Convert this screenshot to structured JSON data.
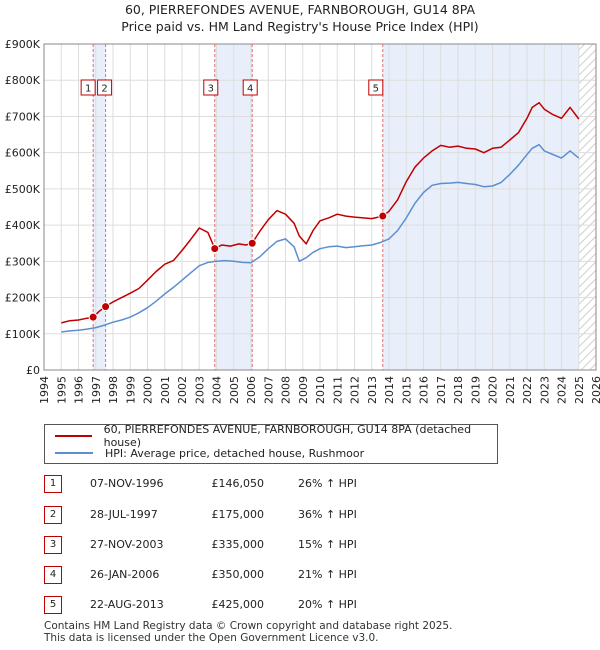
{
  "header": {
    "title": "60, PIERREFONDES AVENUE, FARNBOROUGH, GU14 8PA",
    "subtitle": "Price paid vs. HM Land Registry's House Price Index (HPI)"
  },
  "chart_data": {
    "type": "line",
    "ylim": [
      0,
      900000
    ],
    "xlim": [
      1994,
      2026
    ],
    "y_ticks": [
      "£0",
      "£100K",
      "£200K",
      "£300K",
      "£400K",
      "£500K",
      "£600K",
      "£700K",
      "£800K",
      "£900K"
    ],
    "x_ticks": [
      "1994",
      "1995",
      "1996",
      "1997",
      "1998",
      "1999",
      "2000",
      "2001",
      "2002",
      "2003",
      "2004",
      "2005",
      "2006",
      "2007",
      "2008",
      "2009",
      "2010",
      "2011",
      "2012",
      "2013",
      "2014",
      "2015",
      "2016",
      "2017",
      "2018",
      "2019",
      "2020",
      "2021",
      "2022",
      "2023",
      "2024",
      "2025",
      "2026"
    ],
    "grid": true,
    "series": [
      {
        "name": "60, PIERREFONDES AVENUE, FARNBOROUGH, GU14 8PA (detached house)",
        "color": "#c00000",
        "x": [
          1995.0,
          1995.5,
          1996.0,
          1996.5,
          1996.85,
          1997.2,
          1997.57,
          1998.0,
          1998.5,
          1999.0,
          1999.5,
          2000.0,
          2000.5,
          2001.0,
          2001.5,
          2002.0,
          2002.5,
          2003.0,
          2003.5,
          2003.9,
          2004.3,
          2004.8,
          2005.3,
          2005.7,
          2006.07,
          2006.5,
          2007.0,
          2007.5,
          2008.0,
          2008.5,
          2008.8,
          2009.2,
          2009.6,
          2010.0,
          2010.5,
          2011.0,
          2011.5,
          2012.0,
          2012.5,
          2013.0,
          2013.64,
          2014.0,
          2014.5,
          2015.0,
          2015.5,
          2016.0,
          2016.5,
          2017.0,
          2017.5,
          2018.0,
          2018.5,
          2019.0,
          2019.5,
          2020.0,
          2020.5,
          2021.0,
          2021.5,
          2022.0,
          2022.3,
          2022.7,
          2023.0,
          2023.5,
          2024.0,
          2024.5,
          2025.0
        ],
        "values": [
          130000,
          136000,
          138000,
          143000,
          146050,
          162000,
          175000,
          188000,
          200000,
          212000,
          225000,
          248000,
          272000,
          292000,
          302000,
          330000,
          360000,
          392000,
          380000,
          335000,
          345000,
          342000,
          348000,
          345000,
          350000,
          382000,
          415000,
          440000,
          430000,
          405000,
          370000,
          348000,
          385000,
          412000,
          420000,
          430000,
          425000,
          422000,
          420000,
          418000,
          425000,
          438000,
          470000,
          520000,
          560000,
          585000,
          605000,
          620000,
          615000,
          618000,
          612000,
          610000,
          600000,
          612000,
          615000,
          635000,
          655000,
          695000,
          725000,
          738000,
          720000,
          705000,
          695000,
          725000,
          693000
        ]
      },
      {
        "name": "HPI: Average price, detached house, Rushmoor",
        "color": "#5b8fd0",
        "x": [
          1995.0,
          1995.5,
          1996.0,
          1996.5,
          1997.0,
          1997.5,
          1998.0,
          1998.5,
          1999.0,
          1999.5,
          2000.0,
          2000.5,
          2001.0,
          2001.5,
          2002.0,
          2002.5,
          2003.0,
          2003.5,
          2004.0,
          2004.5,
          2005.0,
          2005.5,
          2006.0,
          2006.5,
          2007.0,
          2007.5,
          2008.0,
          2008.5,
          2008.8,
          2009.2,
          2009.6,
          2010.0,
          2010.5,
          2011.0,
          2011.5,
          2012.0,
          2012.5,
          2013.0,
          2013.5,
          2014.0,
          2014.5,
          2015.0,
          2015.5,
          2016.0,
          2016.5,
          2017.0,
          2017.5,
          2018.0,
          2018.5,
          2019.0,
          2019.5,
          2020.0,
          2020.5,
          2021.0,
          2021.5,
          2022.0,
          2022.3,
          2022.7,
          2023.0,
          2023.5,
          2024.0,
          2024.5,
          2025.0
        ],
        "values": [
          105000,
          108000,
          110000,
          113000,
          117000,
          124000,
          132000,
          138000,
          146000,
          158000,
          172000,
          190000,
          210000,
          228000,
          248000,
          268000,
          288000,
          297000,
          300000,
          302000,
          300000,
          297000,
          296000,
          312000,
          335000,
          355000,
          362000,
          340000,
          300000,
          310000,
          325000,
          335000,
          340000,
          342000,
          338000,
          340000,
          343000,
          345000,
          352000,
          362000,
          385000,
          420000,
          460000,
          490000,
          510000,
          515000,
          516000,
          518000,
          515000,
          512000,
          506000,
          508000,
          518000,
          540000,
          565000,
          595000,
          612000,
          622000,
          605000,
          595000,
          585000,
          605000,
          585000
        ]
      }
    ],
    "sales": [
      {
        "label": "1",
        "x": 1996.85,
        "value": 146050
      },
      {
        "label": "2",
        "x": 1997.57,
        "value": 175000
      },
      {
        "label": "3",
        "x": 2003.9,
        "value": 335000
      },
      {
        "label": "4",
        "x": 2006.07,
        "value": 350000
      },
      {
        "label": "5",
        "x": 2013.64,
        "value": 425000
      }
    ]
  },
  "legend": {
    "property_label": "60, PIERREFONDES AVENUE, FARNBOROUGH, GU14 8PA (detached house)",
    "hpi_label": "HPI: Average price, detached house, Rushmoor",
    "property_color": "#c00000",
    "hpi_color": "#5b8fd0"
  },
  "transactions": [
    {
      "num": "1",
      "date": "07-NOV-1996",
      "price": "£146,050",
      "hpi": "26% ↑ HPI"
    },
    {
      "num": "2",
      "date": "28-JUL-1997",
      "price": "£175,000",
      "hpi": "36% ↑ HPI"
    },
    {
      "num": "3",
      "date": "27-NOV-2003",
      "price": "£335,000",
      "hpi": "15% ↑ HPI"
    },
    {
      "num": "4",
      "date": "26-JAN-2006",
      "price": "£350,000",
      "hpi": "21% ↑ HPI"
    },
    {
      "num": "5",
      "date": "22-AUG-2013",
      "price": "£425,000",
      "hpi": "20% ↑ HPI"
    }
  ],
  "footer": {
    "line1": "Contains HM Land Registry data © Crown copyright and database right 2025.",
    "line2": "This data is licensed under the Open Government Licence v3.0."
  }
}
